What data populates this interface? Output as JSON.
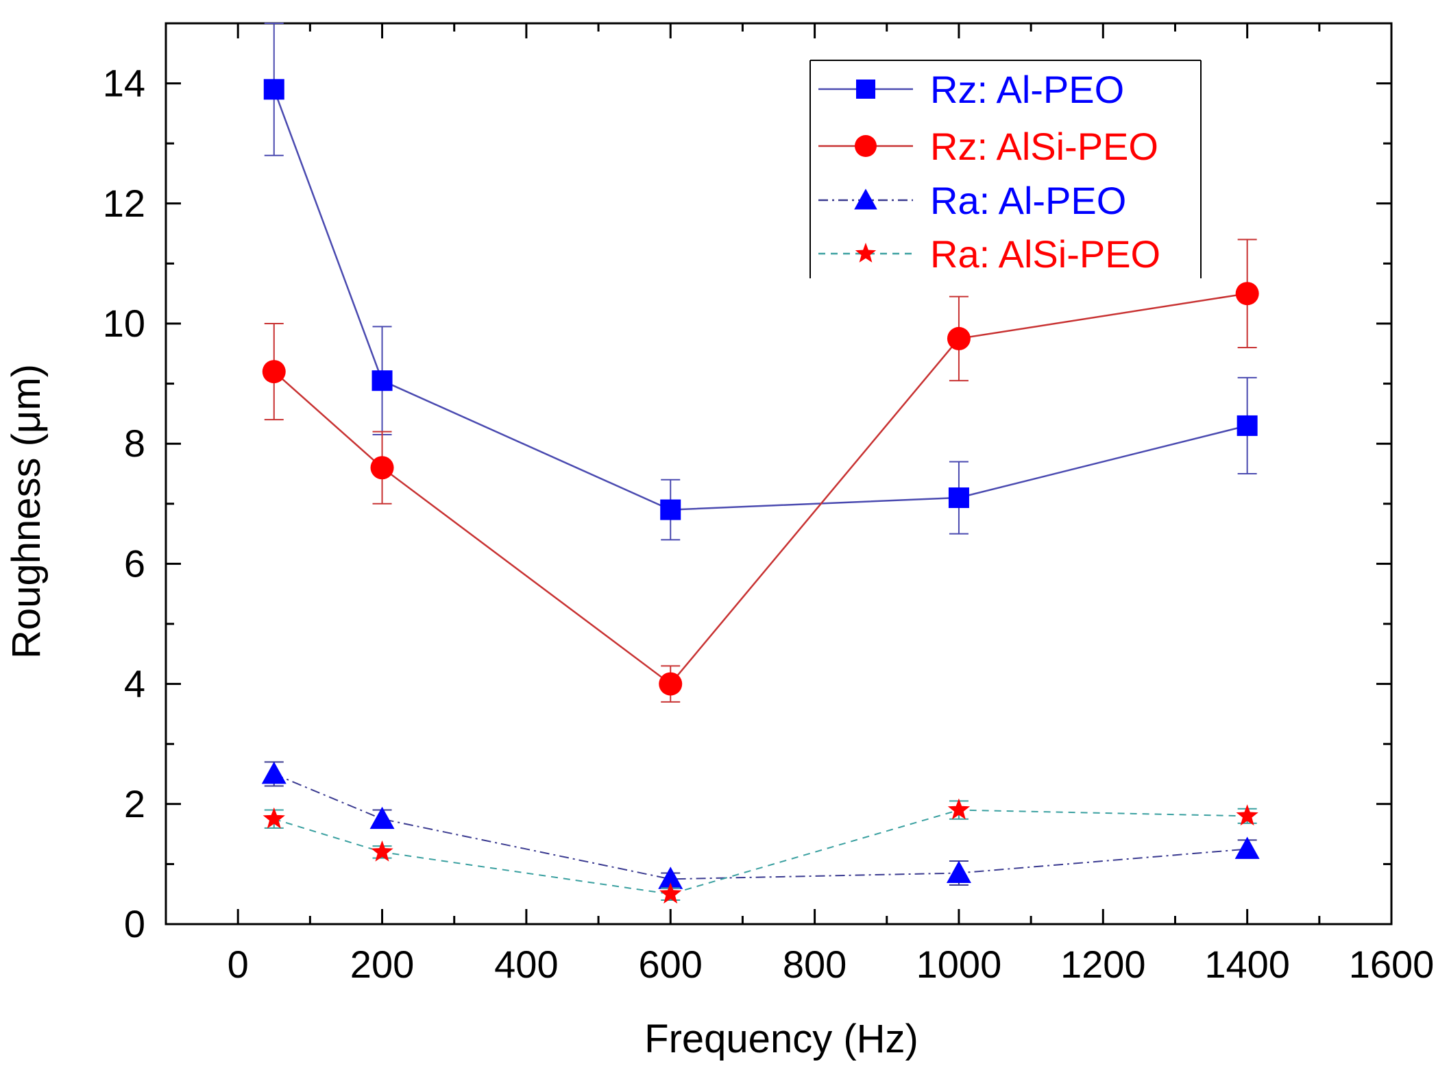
{
  "chart_data": {
    "type": "line",
    "title": "",
    "xlabel": "Frequency (Hz)",
    "ylabel": "Roughness (μm)",
    "xlim": [
      -100,
      1600
    ],
    "ylim": [
      0,
      15
    ],
    "x_ticks": [
      0,
      200,
      400,
      600,
      800,
      1000,
      1200,
      1400,
      1600
    ],
    "y_ticks": [
      0,
      2,
      4,
      6,
      8,
      10,
      12,
      14
    ],
    "grid": false,
    "legend_position": "top-right",
    "x": [
      50,
      200,
      600,
      1000,
      1400
    ],
    "series": [
      {
        "name": "Rz: Al-PEO",
        "color": "#0000ff",
        "line_color": "#4a4ab0",
        "line_style": "solid",
        "marker": "square",
        "values": [
          13.9,
          9.05,
          6.9,
          7.1,
          8.3
        ],
        "errors": [
          1.1,
          0.9,
          0.5,
          0.6,
          0.8
        ]
      },
      {
        "name": "Rz: AlSi-PEO",
        "color": "#ff0000",
        "line_color": "#c83232",
        "line_style": "solid",
        "marker": "circle",
        "values": [
          9.2,
          7.6,
          4.0,
          9.75,
          10.5
        ],
        "errors": [
          0.8,
          0.6,
          0.3,
          0.7,
          0.9
        ]
      },
      {
        "name": "Ra: Al-PEO",
        "color": "#0000ff",
        "line_color": "#3a3a90",
        "line_style": "dash-dot",
        "marker": "triangle",
        "values": [
          2.5,
          1.75,
          0.75,
          0.85,
          1.25
        ],
        "errors": [
          0.2,
          0.15,
          0.1,
          0.2,
          0.15
        ]
      },
      {
        "name": "Ra: AlSi-PEO",
        "color": "#ff0000",
        "line_color": "#3aa0a0",
        "line_style": "dashed",
        "marker": "star",
        "values": [
          1.75,
          1.2,
          0.5,
          1.9,
          1.8
        ],
        "errors": [
          0.15,
          0.1,
          0.1,
          0.15,
          0.12
        ]
      }
    ]
  }
}
